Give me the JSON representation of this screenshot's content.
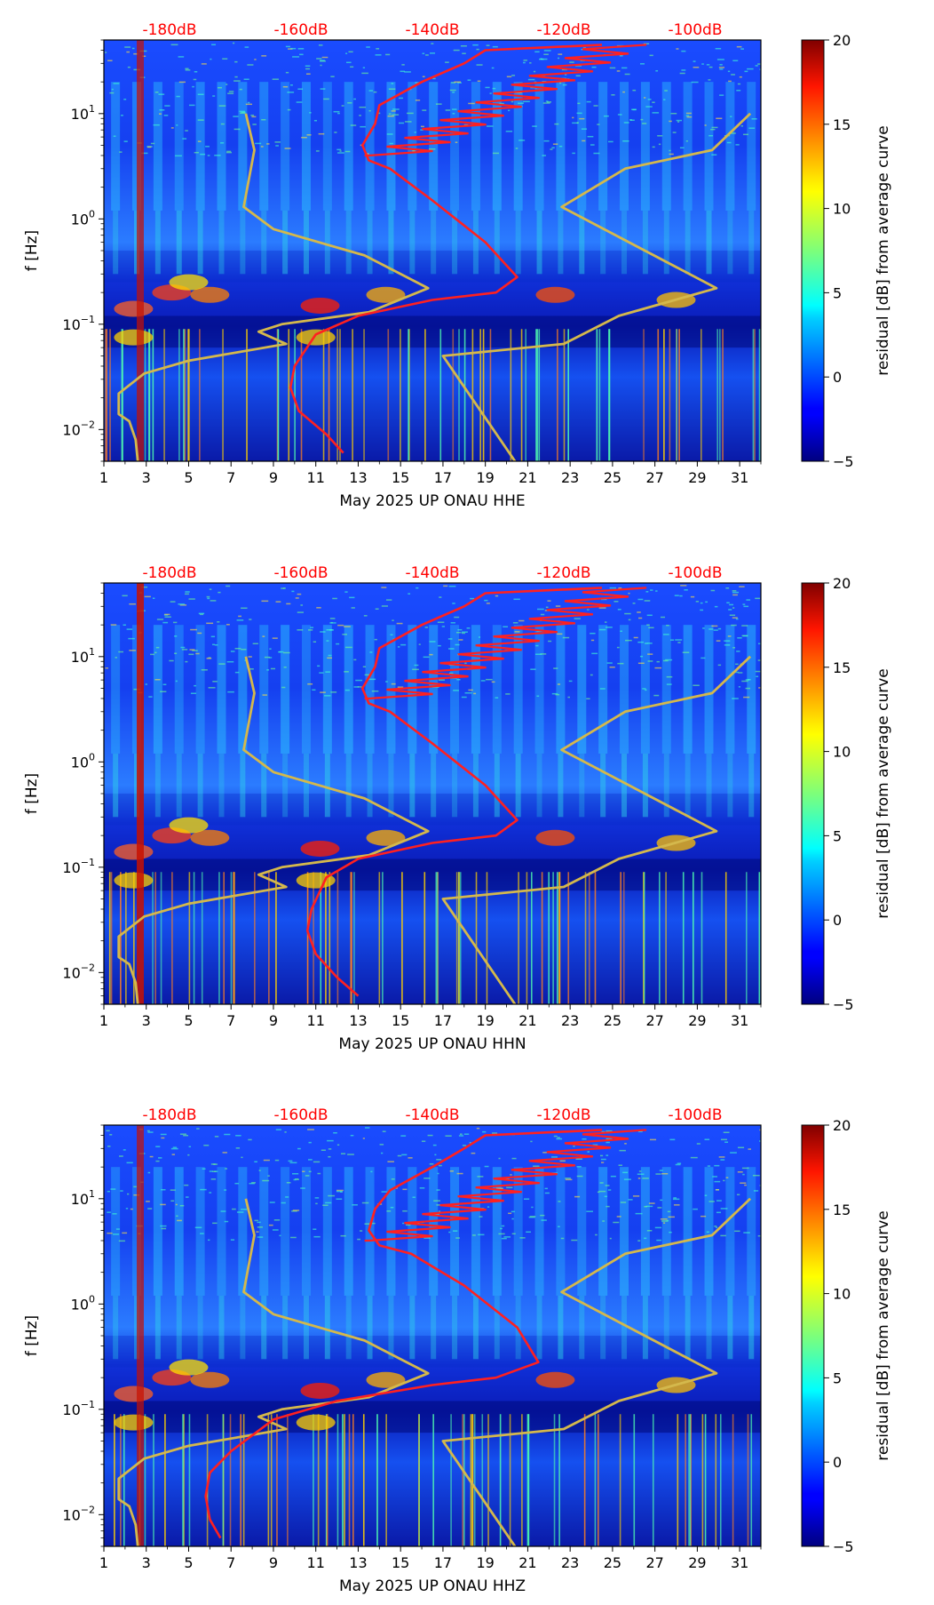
{
  "chart_data": [
    {
      "type": "heatmap",
      "xlabel": "May 2025 UP ONAU  HHE",
      "ylabel": "f [Hz]",
      "x_ticks": [
        1,
        3,
        5,
        7,
        9,
        11,
        13,
        15,
        17,
        19,
        21,
        23,
        25,
        27,
        29,
        31
      ],
      "xlim": [
        1,
        32
      ],
      "ylim": [
        0.005,
        50
      ],
      "yscale": "log",
      "y_ticks": [
        "10^-2",
        "10^-1",
        "10^0",
        "10^1"
      ],
      "colorbar": {
        "label": "residual [dB] from average curve",
        "ticks": [
          -5,
          0,
          5,
          10,
          15,
          20
        ],
        "range": [
          -5,
          20
        ],
        "colormap": "jet"
      },
      "top_axis": {
        "ticks": [
          "-180dB",
          "-160dB",
          "-140dB",
          "-120dB",
          "-100dB"
        ],
        "positions": [
          -180,
          -160,
          -140,
          -120,
          -100
        ],
        "color": "#ff0000"
      },
      "series": [
        {
          "color": "#d4b84c",
          "x": [
            7.7,
            8.1,
            7.6,
            9.0,
            13.3,
            16.3,
            13.5,
            9.4,
            8.3,
            9.6,
            5.0,
            2.9,
            1.7,
            1.7,
            2.2,
            2.5,
            2.6
          ],
          "y": [
            10,
            4.5,
            1.3,
            0.8,
            0.45,
            0.22,
            0.13,
            0.1,
            0.085,
            0.065,
            0.045,
            0.034,
            0.022,
            0.014,
            0.012,
            0.008,
            0.005
          ]
        },
        {
          "color": "#d4b84c",
          "x": [
            31.5,
            29.7,
            25.6,
            22.6,
            29.9,
            25.3,
            22.7,
            17.0,
            20.4
          ],
          "y": [
            10,
            4.5,
            3.0,
            1.3,
            0.22,
            0.12,
            0.065,
            0.05,
            0.005
          ]
        },
        {
          "color": "#ff2020",
          "x": [
            24.5,
            19.0,
            18.0,
            16.0,
            14.0,
            13.8,
            13.2,
            13.5,
            14.5,
            16.5,
            19.0,
            20.5,
            19.5,
            16.5,
            13.0,
            11.0,
            10.0,
            9.8,
            10.2,
            11.5,
            12.3
          ],
          "y": [
            45,
            40,
            30,
            20,
            12,
            8,
            5,
            3.6,
            3.0,
            1.5,
            0.6,
            0.28,
            0.2,
            0.17,
            0.12,
            0.08,
            0.04,
            0.025,
            0.015,
            0.009,
            0.006
          ]
        }
      ]
    },
    {
      "type": "heatmap",
      "xlabel": "May 2025 UP ONAU  HHN",
      "ylabel": "f [Hz]",
      "x_ticks": [
        1,
        3,
        5,
        7,
        9,
        11,
        13,
        15,
        17,
        19,
        21,
        23,
        25,
        27,
        29,
        31
      ],
      "xlim": [
        1,
        32
      ],
      "ylim": [
        0.005,
        50
      ],
      "yscale": "log",
      "y_ticks": [
        "10^-2",
        "10^-1",
        "10^0",
        "10^1"
      ],
      "colorbar": {
        "label": "residual [dB] from average curve",
        "ticks": [
          -5,
          0,
          5,
          10,
          15,
          20
        ],
        "range": [
          -5,
          20
        ],
        "colormap": "jet"
      },
      "top_axis": {
        "ticks": [
          "-180dB",
          "-160dB",
          "-140dB",
          "-120dB",
          "-100dB"
        ],
        "positions": [
          -180,
          -160,
          -140,
          -120,
          -100
        ],
        "color": "#ff0000"
      },
      "series": [
        {
          "color": "#d4b84c",
          "x": [
            7.7,
            8.1,
            7.6,
            9.0,
            13.3,
            16.3,
            13.5,
            9.4,
            8.3,
            9.6,
            5.0,
            2.9,
            1.7,
            1.7,
            2.2,
            2.5,
            2.6
          ],
          "y": [
            10,
            4.5,
            1.3,
            0.8,
            0.45,
            0.22,
            0.13,
            0.1,
            0.085,
            0.065,
            0.045,
            0.034,
            0.022,
            0.014,
            0.012,
            0.008,
            0.005
          ]
        },
        {
          "color": "#d4b84c",
          "x": [
            31.5,
            29.7,
            25.6,
            22.6,
            29.9,
            25.3,
            22.7,
            17.0,
            20.4
          ],
          "y": [
            10,
            4.5,
            3.0,
            1.3,
            0.22,
            0.12,
            0.065,
            0.05,
            0.005
          ]
        },
        {
          "color": "#ff2020",
          "x": [
            24.5,
            19.0,
            18.0,
            16.0,
            14.0,
            13.8,
            13.2,
            13.5,
            14.5,
            16.5,
            19.0,
            20.5,
            19.5,
            16.5,
            13.0,
            11.5,
            10.8,
            10.6,
            11.0,
            12.0,
            13.0
          ],
          "y": [
            45,
            40,
            30,
            20,
            12,
            8,
            5,
            3.6,
            3.0,
            1.5,
            0.6,
            0.28,
            0.2,
            0.17,
            0.12,
            0.08,
            0.04,
            0.025,
            0.015,
            0.009,
            0.006
          ]
        }
      ]
    },
    {
      "type": "heatmap",
      "xlabel": "May 2025 UP ONAU  HHZ",
      "ylabel": "f [Hz]",
      "x_ticks": [
        1,
        3,
        5,
        7,
        9,
        11,
        13,
        15,
        17,
        19,
        21,
        23,
        25,
        27,
        29,
        31
      ],
      "xlim": [
        1,
        32
      ],
      "ylim": [
        0.005,
        50
      ],
      "yscale": "log",
      "y_ticks": [
        "10^-2",
        "10^-1",
        "10^0",
        "10^1"
      ],
      "colorbar": {
        "label": "residual [dB] from average curve",
        "ticks": [
          -5,
          0,
          5,
          10,
          15,
          20
        ],
        "range": [
          -5,
          20
        ],
        "colormap": "jet"
      },
      "top_axis": {
        "ticks": [
          "-180dB",
          "-160dB",
          "-140dB",
          "-120dB",
          "-100dB"
        ],
        "positions": [
          -180,
          -160,
          -140,
          -120,
          -100
        ],
        "color": "#ff0000"
      },
      "series": [
        {
          "color": "#d4b84c",
          "x": [
            7.7,
            8.1,
            7.6,
            9.0,
            13.3,
            16.3,
            13.5,
            9.4,
            8.3,
            9.6,
            5.0,
            2.9,
            1.7,
            1.7,
            2.2,
            2.5,
            2.6
          ],
          "y": [
            10,
            4.5,
            1.3,
            0.8,
            0.45,
            0.22,
            0.13,
            0.1,
            0.085,
            0.065,
            0.045,
            0.034,
            0.022,
            0.014,
            0.012,
            0.008,
            0.005
          ]
        },
        {
          "color": "#d4b84c",
          "x": [
            31.5,
            29.7,
            25.6,
            22.6,
            29.9,
            25.3,
            22.7,
            17.0,
            20.4
          ],
          "y": [
            10,
            4.5,
            3.0,
            1.3,
            0.22,
            0.12,
            0.065,
            0.05,
            0.005
          ]
        },
        {
          "color": "#ff2020",
          "x": [
            24.5,
            19.0,
            18.0,
            16.5,
            14.5,
            13.8,
            13.5,
            14.0,
            15.5,
            18.0,
            20.5,
            21.5,
            19.5,
            16.5,
            12.0,
            9.0,
            7.0,
            6.0,
            5.8,
            6.0,
            6.5
          ],
          "y": [
            45,
            40,
            30,
            20,
            12,
            8,
            5,
            3.6,
            3.0,
            1.5,
            0.6,
            0.28,
            0.2,
            0.17,
            0.12,
            0.08,
            0.04,
            0.025,
            0.015,
            0.009,
            0.006
          ]
        }
      ]
    }
  ]
}
